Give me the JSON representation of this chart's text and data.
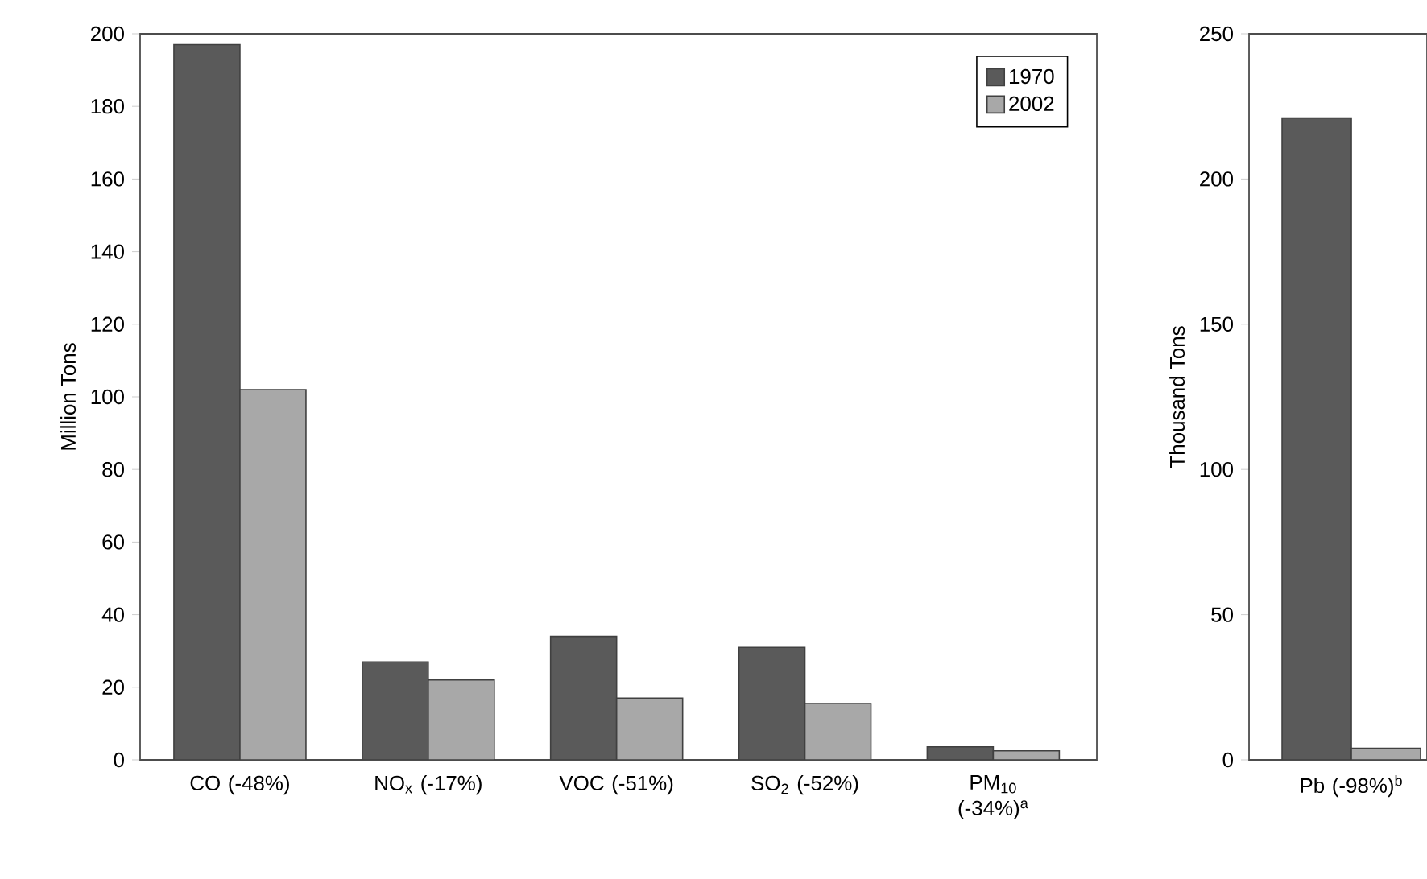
{
  "chart_data": [
    {
      "type": "bar",
      "ylabel": "Million Tons",
      "categories": [
        "CO (-48%)",
        "NO$_{x}$ (-17%)",
        "VOC (-51%)",
        "SO$_{2}$ (-52%)",
        "PM$_{10}$ (-34%)$^{a}$"
      ],
      "series": [
        {
          "name": "1970",
          "color": "#5a5a5a",
          "values": [
            197,
            27,
            34,
            31,
            3.6
          ]
        },
        {
          "name": "2002",
          "color": "#a8a8a8",
          "values": [
            102,
            22,
            17,
            15.5,
            2.5
          ]
        }
      ],
      "ylim": [
        0,
        200
      ],
      "yticks": [
        0,
        20,
        40,
        60,
        80,
        100,
        120,
        140,
        160,
        180,
        200
      ],
      "legend": "top right"
    },
    {
      "type": "bar",
      "ylabel": "Thousand Tons",
      "categories": [
        "Pb (-98%)$^{b}$"
      ],
      "series": [
        {
          "color": "#5a5a5a",
          "values": [
            221
          ]
        },
        {
          "color": "#a8a8a8",
          "values": [
            4
          ]
        }
      ],
      "ylim": [
        0,
        250
      ],
      "yticks": [
        0,
        50,
        100,
        150,
        200,
        250
      ]
    }
  ]
}
